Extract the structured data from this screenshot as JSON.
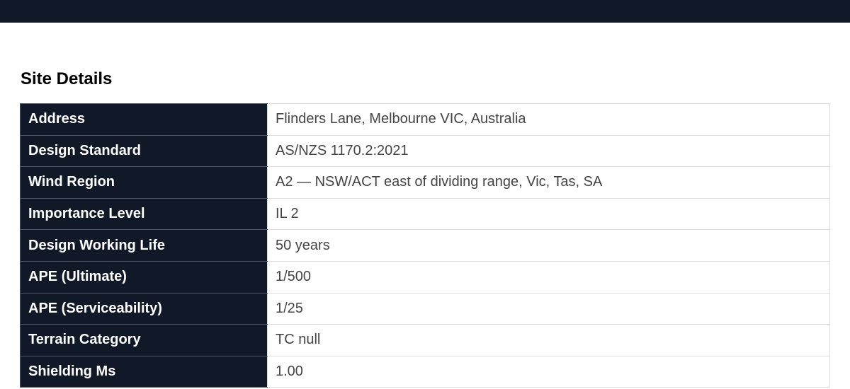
{
  "header": {
    "background": "#111827"
  },
  "section_title": "Site Details",
  "rows": [
    {
      "label": "Address",
      "value": "Flinders Lane, Melbourne VIC, Australia"
    },
    {
      "label": "Design Standard",
      "value": "AS/NZS 1170.2:2021"
    },
    {
      "label": "Wind Region",
      "value": "A2 — NSW/ACT east of dividing range, Vic, Tas, SA"
    },
    {
      "label": "Importance Level",
      "value": "IL 2"
    },
    {
      "label": "Design Working Life",
      "value": "50 years"
    },
    {
      "label": "APE (Ultimate)",
      "value": "1/500"
    },
    {
      "label": "APE (Serviceability)",
      "value": "1/25"
    },
    {
      "label": "Terrain Category",
      "value": "TC null"
    },
    {
      "label": "Shielding Ms",
      "value": "1.00"
    }
  ]
}
